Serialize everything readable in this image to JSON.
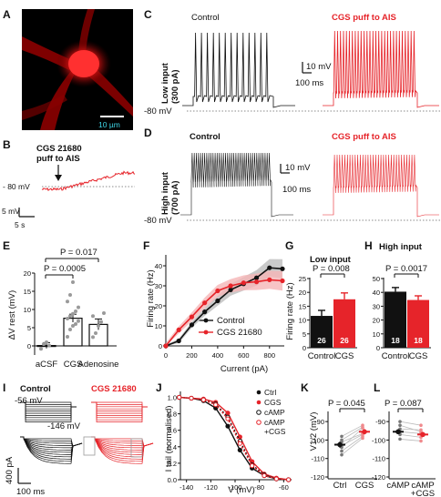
{
  "panels": {
    "A": {
      "letter": "A",
      "scalebar": "10 µm"
    },
    "B": {
      "letter": "B",
      "label_line1": "CGS 21680",
      "label_line2": "puff to AIS",
      "v_label": "- 80 mV",
      "scale_v": "5 mV",
      "scale_t": "5 s"
    },
    "C": {
      "letter": "C",
      "control": "Control",
      "cgs": "CGS puff to AIS",
      "input_line1": "Low input",
      "input_line2": "(300 pA)",
      "scale_v": "10 mV",
      "scale_t": "100 ms",
      "v_label": "-80 mV"
    },
    "D": {
      "letter": "D",
      "control": "Control",
      "cgs": "CGS puff to AIS",
      "input_line1": "High input",
      "input_line2": "(700 pA)",
      "scale_v": "10 mV",
      "scale_t": "100 ms",
      "v_label": "-80 mV"
    },
    "E": {
      "letter": "E",
      "ylabel": "ΔV rest (mV)",
      "p1": "P = 0.017",
      "p2": "P = 0.0005"
    },
    "F": {
      "letter": "F",
      "ylabel": "Firing rate (Hz)",
      "xlabel": "Current (pA)",
      "legend_control": "Control",
      "legend_cgs": "CGS 21680"
    },
    "G": {
      "letter": "G",
      "title": "Low input",
      "ylabel": "Firing rate (Hz)",
      "p": "P = 0.008"
    },
    "H": {
      "letter": "H",
      "title": "High input",
      "p": "P = 0.0017"
    },
    "I": {
      "letter": "I",
      "control": "Control",
      "cgs": "CGS 21680",
      "v_top": "-56 mV",
      "v_bottom": "-146 mV",
      "scale_i": "400 pA",
      "scale_t": "100 ms"
    },
    "J": {
      "letter": "J",
      "ylabel": "I tail (normalised)",
      "xlabel": "V (mV)",
      "legend": [
        "Ctrl",
        "CGS",
        "cAMP",
        "cAMP",
        "+CGS"
      ]
    },
    "K": {
      "letter": "K",
      "ylabel": "V1/2 (mV)",
      "p": "P = 0.045"
    },
    "L": {
      "letter": "L",
      "p": "P = 0.087"
    }
  },
  "colors": {
    "control": "#111111",
    "cgs": "#e6242a",
    "grey_band": "#bdbdbd",
    "pink_band": "#f5b5b7"
  },
  "chart_data": [
    {
      "panel": "E",
      "type": "bar",
      "ylabel": "ΔV rest (mV)",
      "categories": [
        "aCSF",
        "CGS",
        "Adenosine"
      ],
      "values": [
        0.1,
        7.6,
        5.9
      ],
      "sem": [
        0.8,
        1.1,
        1.5
      ],
      "ylim": [
        -2,
        20
      ],
      "yticks": [
        0,
        5,
        10,
        15,
        20
      ],
      "points": [
        [
          -0.8,
          0.5,
          1.0,
          0.1
        ],
        [
          2.5,
          4.5,
          5.5,
          6.0,
          6.8,
          7.5,
          8.2,
          8.8,
          9.5,
          10.6,
          12.2,
          14.0,
          17.5
        ],
        [
          2.4,
          3.5,
          5.5,
          6.6,
          9.0,
          8.2
        ]
      ],
      "annotations": [
        "P = 0.017",
        "P = 0.0005"
      ]
    },
    {
      "panel": "F",
      "type": "line",
      "xlabel": "Current (pA)",
      "ylabel": "Firing rate (Hz)",
      "xlim": [
        0,
        900
      ],
      "ylim": [
        0,
        45
      ],
      "xticks": [
        0,
        200,
        400,
        600,
        800
      ],
      "yticks": [
        0,
        10,
        20,
        30,
        40
      ],
      "x": [
        0,
        100,
        200,
        300,
        400,
        500,
        600,
        700,
        800,
        900
      ],
      "series": [
        {
          "name": "Control",
          "values": [
            0,
            2.5,
            10.5,
            17,
            22.5,
            28,
            31,
            34,
            39,
            38.5
          ]
        },
        {
          "name": "CGS 21680",
          "values": [
            0,
            8,
            14.5,
            21.5,
            27.5,
            30,
            31.5,
            32,
            33,
            32.5
          ]
        }
      ]
    },
    {
      "panel": "G",
      "type": "bar",
      "title": "Low input",
      "ylabel": "Firing rate (Hz)",
      "categories": [
        "Control",
        "CGS"
      ],
      "values": [
        11.5,
        17.5
      ],
      "sem": [
        2,
        2.3
      ],
      "n": [
        "26",
        "26"
      ],
      "ylim": [
        0,
        25
      ],
      "yticks": [
        0,
        5,
        10,
        15,
        20,
        25
      ]
    },
    {
      "panel": "H",
      "type": "bar",
      "title": "High input",
      "categories": [
        "Control",
        "CGS"
      ],
      "values": [
        40.5,
        34.5
      ],
      "sem": [
        3,
        3
      ],
      "n": [
        "18",
        "18"
      ],
      "ylim": [
        0,
        50
      ],
      "yticks": [
        0,
        10,
        20,
        30,
        40,
        50
      ]
    },
    {
      "panel": "J",
      "type": "line",
      "xlabel": "V (mV)",
      "ylabel": "I tail (normalised)",
      "xlim": [
        -145,
        -55
      ],
      "ylim": [
        0,
        1.05
      ],
      "xticks": [
        -140,
        -120,
        -100,
        -80,
        -60
      ],
      "yticks": [
        0,
        0.2,
        0.4,
        0.6,
        0.8,
        1.0
      ],
      "x": [
        -146,
        -136,
        -126,
        -116,
        -106,
        -96,
        -86,
        -76,
        -66,
        -56
      ],
      "series": [
        {
          "name": "Ctrl",
          "values": [
            1.0,
            0.99,
            0.96,
            0.87,
            0.65,
            0.36,
            0.14,
            0.05,
            0.01,
            0.0
          ]
        },
        {
          "name": "CGS",
          "values": [
            1.0,
            0.99,
            0.98,
            0.94,
            0.81,
            0.52,
            0.22,
            0.07,
            0.02,
            0.0
          ]
        },
        {
          "name": "cAMP",
          "values": [
            1.0,
            0.99,
            0.97,
            0.92,
            0.76,
            0.47,
            0.18,
            0.06,
            0.01,
            0.0
          ]
        },
        {
          "name": "cAMP +CGS",
          "values": [
            1.0,
            0.99,
            0.97,
            0.91,
            0.74,
            0.44,
            0.17,
            0.05,
            0.01,
            0.0
          ]
        }
      ]
    },
    {
      "panel": "K",
      "type": "scatter",
      "ylabel": "V1/2 (mV)",
      "categories": [
        "Ctrl",
        "CGS"
      ],
      "means": [
        -102.5,
        -95.5
      ],
      "sem": [
        1.6,
        1.4
      ],
      "ylim": [
        -120,
        -85
      ],
      "yticks": [
        -120,
        -110,
        -100,
        -90
      ],
      "pairs": [
        [
          -108,
          -99
        ],
        [
          -106,
          -98
        ],
        [
          -104,
          -93.5
        ],
        [
          -103,
          -97
        ],
        [
          -101,
          -96.5
        ],
        [
          -100,
          -93
        ],
        [
          -98,
          -92
        ]
      ],
      "annotations": [
        "P = 0.045"
      ]
    },
    {
      "panel": "L",
      "type": "scatter",
      "categories": [
        "cAMP",
        "cAMP\n+CGS"
      ],
      "means": [
        -95.5,
        -97
      ],
      "sem": [
        1.3,
        1.0
      ],
      "ylim": [
        -120,
        -85
      ],
      "yticks": [
        -120,
        -110,
        -100,
        -90
      ],
      "pairs": [
        [
          -99.5,
          -100.5
        ],
        [
          -97,
          -98.5
        ],
        [
          -95.5,
          -96.5
        ],
        [
          -94,
          -94.5
        ],
        [
          -92,
          -95.5
        ],
        [
          -90,
          -92
        ]
      ],
      "annotations": [
        "P = 0.087"
      ]
    }
  ]
}
